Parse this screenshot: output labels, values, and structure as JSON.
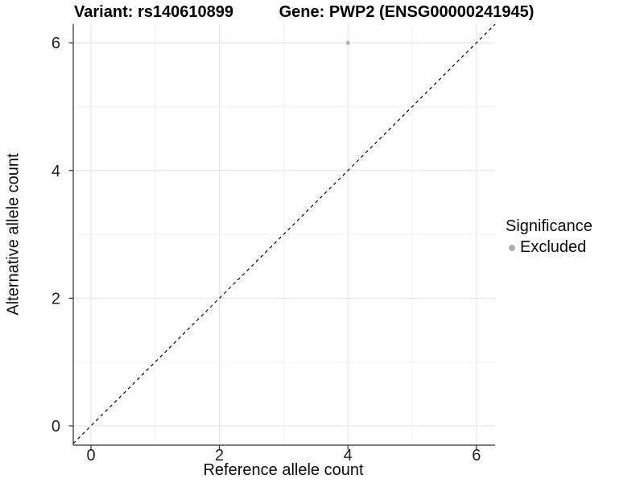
{
  "header": {
    "variant_title": "Variant: rs140610899",
    "gene_title": "Gene: PWP2 (ENSG00000241945)"
  },
  "legend": {
    "title": "Significance",
    "items": [
      {
        "label": "Excluded",
        "marker_color": "#adadad"
      }
    ]
  },
  "chart_data": {
    "type": "scatter",
    "title_left": "Variant: rs140610899",
    "title_right": "Gene: PWP2 (ENSG00000241945)",
    "xlabel": "Reference allele count",
    "ylabel": "Alternative allele count",
    "xlim": [
      -0.28,
      6.29
    ],
    "ylim": [
      -0.3,
      6.29
    ],
    "xticks": [
      0,
      2,
      4,
      6
    ],
    "yticks": [
      0,
      2,
      4,
      6
    ],
    "xminor": [
      1,
      3,
      5
    ],
    "yminor": [
      1,
      3,
      5
    ],
    "grid": true,
    "legend_position": "right",
    "series": [
      {
        "name": "Excluded",
        "color": "#b8b8b8",
        "points": [
          [
            4,
            6
          ]
        ]
      }
    ],
    "reference_line": {
      "equation": "y = x",
      "style": "dashed",
      "color": "#000000"
    },
    "colors": {
      "grid_major": "#e3e3e3",
      "grid_minor": "#f0f0f0",
      "axis_line": "#2f2f2f",
      "tick_mark": "#2f2f2f",
      "tick_label": "#1f1f1f"
    }
  }
}
